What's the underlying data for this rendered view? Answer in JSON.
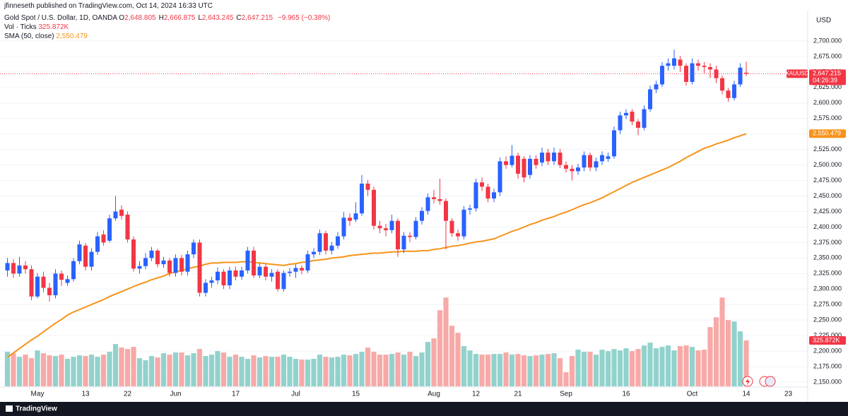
{
  "chart_data": {
    "type": "candlestick",
    "publisher": "jfinneseth published on TradingView.com, Oct 14, 2024 16:33 UTC",
    "title": "Gold Spot / U.S. Dollar, 1D, OANDA",
    "ohlc_legend": [
      {
        "label": "O",
        "value": "2,648.805"
      },
      {
        "label": "H",
        "value": "2,666.875"
      },
      {
        "label": "L",
        "value": "2,643.245"
      },
      {
        "label": "C",
        "value": "2,647.215"
      }
    ],
    "change": "−9.965 (−0.38%)",
    "currency": "USD",
    "brand": "TradingView",
    "categories": [
      null,
      null,
      null,
      null,
      null,
      "May",
      null,
      null,
      null,
      null,
      null,
      null,
      null,
      "13",
      null,
      null,
      null,
      null,
      null,
      null,
      "22",
      null,
      null,
      null,
      null,
      null,
      null,
      null,
      "Jun",
      null,
      null,
      null,
      null,
      null,
      null,
      null,
      null,
      null,
      "17",
      null,
      null,
      null,
      null,
      null,
      null,
      null,
      null,
      null,
      "Jul",
      null,
      null,
      null,
      null,
      null,
      null,
      null,
      null,
      null,
      "15",
      null,
      null,
      null,
      null,
      null,
      null,
      null,
      null,
      null,
      null,
      null,
      null,
      "Aug",
      null,
      null,
      null,
      null,
      null,
      null,
      "12",
      null,
      null,
      null,
      null,
      null,
      null,
      "21",
      null,
      null,
      null,
      null,
      null,
      null,
      null,
      "Sep",
      null,
      null,
      null,
      null,
      null,
      null,
      null,
      null,
      null,
      "16",
      null,
      null,
      null,
      null,
      null,
      null,
      null,
      null,
      null,
      null,
      "Oct",
      null,
      null,
      null,
      null,
      null,
      null,
      null,
      null,
      "14",
      null,
      null,
      null,
      null,
      null,
      null,
      "23"
    ],
    "ylim": [
      2150,
      2700
    ],
    "yticks": [
      {
        "value": 2150,
        "label": "2,150.000"
      },
      {
        "value": 2175,
        "label": "2,175.000"
      },
      {
        "value": 2200,
        "label": "2,200.000"
      },
      {
        "value": 2225,
        "label": "2,225.000"
      },
      {
        "value": 2250,
        "label": "2,250.000"
      },
      {
        "value": 2275,
        "label": "2,275.000"
      },
      {
        "value": 2300,
        "label": "2,300.000"
      },
      {
        "value": 2325,
        "label": "2,325.000"
      },
      {
        "value": 2350,
        "label": "2,350.000"
      },
      {
        "value": 2375,
        "label": "2,375.000"
      },
      {
        "value": 2400,
        "label": "2,400.000"
      },
      {
        "value": 2425,
        "label": "2,425.000"
      },
      {
        "value": 2450,
        "label": "2,450.000"
      },
      {
        "value": 2475,
        "label": "2,475.000"
      },
      {
        "value": 2500,
        "label": "2,500.000"
      },
      {
        "value": 2525,
        "label": "2,525.000"
      },
      {
        "value": 2550,
        "label": "2,550.000"
      },
      {
        "value": 2575,
        "label": "2,575.000"
      },
      {
        "value": 2600,
        "label": "2,600.000"
      },
      {
        "value": 2625,
        "label": "2,625.000"
      },
      {
        "value": 2650,
        "label": "2,650.000"
      },
      {
        "value": 2675,
        "label": "2,675.000"
      },
      {
        "value": 2700,
        "label": "2,700.000"
      }
    ],
    "y2lim": [
      0,
      2420000
    ],
    "grid": true,
    "series": [
      {
        "name": "XAUUSD",
        "type": "candlestick",
        "up_color": "#2962ff",
        "down_color": "#f23645",
        "last_label": "2,647.215",
        "countdown": "04:26:39",
        "open": [
          2330,
          2342,
          2325,
          2338,
          2332,
          2288,
          2320,
          2302,
          2290,
          2325,
          2310,
          2316,
          2345,
          2370,
          2336,
          2360,
          2388,
          2378,
          2414,
          2428,
          2420,
          2380,
          2333,
          2337,
          2350,
          2362,
          2340,
          2346,
          2326,
          2350,
          2328,
          2356,
          2375,
          2294,
          2310,
          2314,
          2328,
          2306,
          2330,
          2320,
          2330,
          2362,
          2322,
          2336,
          2320,
          2328,
          2300,
          2326,
          2328,
          2334,
          2330,
          2356,
          2360,
          2390,
          2362,
          2370,
          2385,
          2415,
          2412,
          2422,
          2470,
          2460,
          2402,
          2398,
          2395,
          2410,
          2364,
          2386,
          2384,
          2410,
          2426,
          2448,
          2445,
          2442,
          2410,
          2390,
          2385,
          2428,
          2430,
          2472,
          2465,
          2446,
          2456,
          2506,
          2500,
          2515,
          2510,
          2484,
          2510,
          2504,
          2520,
          2506,
          2520,
          2500,
          2494,
          2490,
          2496,
          2516,
          2496,
          2506,
          2510,
          2514,
          2556,
          2580,
          2586,
          2570,
          2560,
          2590,
          2622,
          2630,
          2660,
          2660,
          2670,
          2660,
          2634,
          2664,
          2660,
          2658,
          2654,
          2640,
          2620,
          2608,
          2630,
          2648.805,
          null,
          null,
          null,
          null,
          null,
          null,
          null
        ],
        "high": [
          2350,
          2348,
          2352,
          2345,
          2338,
          2326,
          2328,
          2310,
          2332,
          2330,
          2322,
          2350,
          2378,
          2374,
          2366,
          2392,
          2395,
          2420,
          2450,
          2435,
          2425,
          2385,
          2345,
          2358,
          2368,
          2365,
          2352,
          2350,
          2356,
          2355,
          2362,
          2380,
          2380,
          2316,
          2320,
          2335,
          2332,
          2336,
          2336,
          2336,
          2368,
          2368,
          2342,
          2340,
          2332,
          2332,
          2330,
          2334,
          2340,
          2338,
          2362,
          2366,
          2396,
          2394,
          2376,
          2392,
          2424,
          2422,
          2440,
          2484,
          2476,
          2465,
          2410,
          2405,
          2420,
          2414,
          2392,
          2392,
          2416,
          2432,
          2454,
          2460,
          2478,
          2446,
          2414,
          2396,
          2434,
          2436,
          2478,
          2480,
          2470,
          2462,
          2512,
          2514,
          2532,
          2520,
          2514,
          2516,
          2516,
          2528,
          2526,
          2528,
          2526,
          2506,
          2500,
          2502,
          2522,
          2520,
          2512,
          2522,
          2520,
          2562,
          2586,
          2590,
          2590,
          2574,
          2596,
          2628,
          2636,
          2666,
          2672,
          2686,
          2676,
          2664,
          2672,
          2670,
          2666,
          2664,
          2660,
          2644,
          2624,
          2636,
          2664,
          2666.875,
          null,
          null,
          null,
          null,
          null,
          null,
          null
        ],
        "low": [
          2320,
          2318,
          2320,
          2325,
          2282,
          2285,
          2295,
          2280,
          2285,
          2305,
          2305,
          2312,
          2340,
          2330,
          2330,
          2355,
          2370,
          2375,
          2410,
          2412,
          2375,
          2328,
          2325,
          2332,
          2345,
          2335,
          2334,
          2320,
          2320,
          2322,
          2322,
          2350,
          2288,
          2288,
          2302,
          2308,
          2300,
          2300,
          2314,
          2315,
          2325,
          2318,
          2318,
          2314,
          2312,
          2296,
          2296,
          2320,
          2318,
          2324,
          2326,
          2350,
          2355,
          2356,
          2356,
          2365,
          2380,
          2402,
          2408,
          2418,
          2450,
          2396,
          2390,
          2385,
          2390,
          2352,
          2358,
          2376,
          2380,
          2404,
          2420,
          2438,
          2436,
          2364,
          2384,
          2378,
          2380,
          2420,
          2425,
          2458,
          2440,
          2440,
          2450,
          2494,
          2496,
          2478,
          2472,
          2478,
          2494,
          2498,
          2500,
          2500,
          2495,
          2488,
          2475,
          2484,
          2490,
          2490,
          2490,
          2500,
          2505,
          2510,
          2550,
          2574,
          2564,
          2548,
          2556,
          2586,
          2616,
          2626,
          2652,
          2654,
          2650,
          2628,
          2630,
          2652,
          2648,
          2640,
          2632,
          2614,
          2602,
          2604,
          2626,
          2643.245,
          null,
          null,
          null,
          null,
          null,
          null,
          null
        ],
        "close": [
          2342,
          2325,
          2338,
          2332,
          2288,
          2320,
          2302,
          2290,
          2325,
          2315,
          2316,
          2345,
          2372,
          2336,
          2360,
          2385,
          2375,
          2414,
          2425,
          2418,
          2380,
          2333,
          2337,
          2350,
          2362,
          2340,
          2346,
          2326,
          2350,
          2328,
          2356,
          2375,
          2294,
          2310,
          2314,
          2328,
          2306,
          2330,
          2320,
          2330,
          2362,
          2322,
          2336,
          2320,
          2326,
          2300,
          2326,
          2328,
          2334,
          2330,
          2356,
          2360,
          2390,
          2362,
          2370,
          2385,
          2415,
          2410,
          2422,
          2470,
          2460,
          2402,
          2398,
          2395,
          2410,
          2364,
          2386,
          2384,
          2410,
          2426,
          2448,
          2445,
          2442,
          2410,
          2390,
          2385,
          2428,
          2430,
          2472,
          2465,
          2446,
          2456,
          2506,
          2500,
          2515,
          2486,
          2480,
          2510,
          2500,
          2520,
          2506,
          2520,
          2500,
          2494,
          2490,
          2496,
          2516,
          2496,
          2506,
          2516,
          2514,
          2556,
          2580,
          2584,
          2570,
          2560,
          2590,
          2622,
          2630,
          2660,
          2664,
          2672,
          2660,
          2634,
          2664,
          2660,
          2658,
          2654,
          2640,
          2620,
          2608,
          2630,
          2657,
          2647.215,
          null,
          null,
          null,
          null,
          null,
          null,
          null
        ]
      },
      {
        "name": "Vol · Ticks",
        "type": "volume",
        "axis": "y2",
        "up_color": "#92d2cc",
        "down_color": "#f7a9a7",
        "tag_color": "#f23645",
        "last_label": "325.872K",
        "values": [
          245000,
          235000,
          210000,
          225000,
          200000,
          255000,
          235000,
          220000,
          215000,
          225000,
          195000,
          210000,
          220000,
          215000,
          225000,
          210000,
          225000,
          245000,
          300000,
          275000,
          265000,
          280000,
          200000,
          185000,
          215000,
          205000,
          235000,
          225000,
          240000,
          240000,
          220000,
          235000,
          265000,
          215000,
          225000,
          250000,
          240000,
          210000,
          225000,
          210000,
          195000,
          220000,
          205000,
          215000,
          210000,
          210000,
          225000,
          210000,
          195000,
          190000,
          190000,
          195000,
          225000,
          210000,
          205000,
          210000,
          225000,
          220000,
          230000,
          245000,
          275000,
          245000,
          225000,
          225000,
          230000,
          240000,
          225000,
          245000,
          215000,
          240000,
          315000,
          340000,
          540000,
          630000,
          430000,
          380000,
          285000,
          255000,
          230000,
          225000,
          225000,
          230000,
          230000,
          240000,
          225000,
          230000,
          220000,
          215000,
          220000,
          225000,
          230000,
          235000,
          200000,
          100000,
          215000,
          260000,
          245000,
          245000,
          225000,
          260000,
          250000,
          265000,
          255000,
          270000,
          250000,
          265000,
          290000,
          310000,
          270000,
          280000,
          290000,
          255000,
          285000,
          290000,
          280000,
          255000,
          260000,
          420000,
          490000,
          630000,
          470000,
          460000,
          390000,
          325872,
          null,
          null,
          null,
          null,
          null,
          null,
          null
        ]
      },
      {
        "name": "SMA (50, close)",
        "type": "line",
        "color": "#f7931a",
        "last_label": "2,550.479",
        "values": [
          2190,
          2197,
          2204,
          2211,
          2218,
          2224,
          2231,
          2238,
          2245,
          2251,
          2258,
          2263,
          2267,
          2271,
          2275,
          2279,
          2283,
          2288,
          2292,
          2296,
          2300,
          2304,
          2308,
          2311,
          2315,
          2318,
          2321,
          2325,
          2328,
          2330,
          2333,
          2335,
          2337,
          2340,
          2342,
          2342,
          2343,
          2343,
          2343,
          2344,
          2344,
          2343,
          2342,
          2341,
          2340,
          2339,
          2338,
          2340,
          2341,
          2343,
          2344,
          2346,
          2347,
          2348,
          2350,
          2351,
          2352,
          2354,
          2355,
          2356,
          2357,
          2358,
          2358,
          2359,
          2360,
          2360,
          2361,
          2361,
          2361,
          2362,
          2362,
          2364,
          2365,
          2367,
          2369,
          2370,
          2372,
          2374,
          2376,
          2377,
          2379,
          2381,
          2385,
          2389,
          2393,
          2396,
          2400,
          2404,
          2407,
          2411,
          2414,
          2417,
          2421,
          2424,
          2428,
          2432,
          2436,
          2439,
          2443,
          2447,
          2452,
          2457,
          2462,
          2467,
          2472,
          2476,
          2480,
          2484,
          2488,
          2492,
          2496,
          2501,
          2506,
          2512,
          2517,
          2522,
          2527,
          2530,
          2534,
          2537,
          2540,
          2544,
          2547,
          2550.479,
          null,
          null,
          null,
          null,
          null,
          null,
          null
        ]
      }
    ]
  }
}
